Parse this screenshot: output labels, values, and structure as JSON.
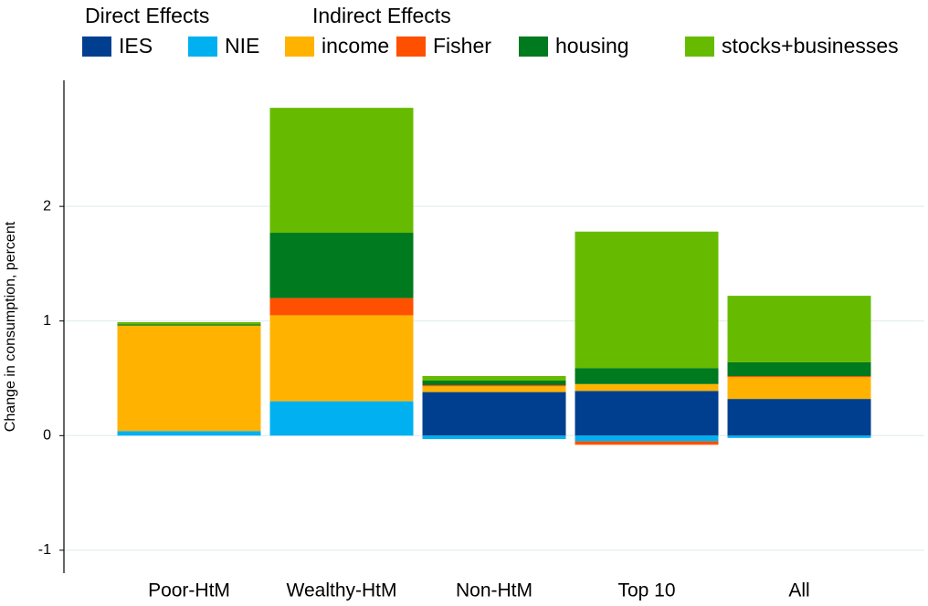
{
  "chart_data": {
    "type": "stacked_bar",
    "y_label": "Change in consumption, percent",
    "legend_groups": [
      {
        "title": "Direct Effects"
      },
      {
        "title": "Indirect Effects"
      }
    ],
    "categories": [
      "Poor-HtM",
      "Wealthy-HtM",
      "Non-HtM",
      "Top 10",
      "All"
    ],
    "series": [
      {
        "name": "IES",
        "color": "#003f8f",
        "values": [
          0,
          0,
          0.38,
          0.39,
          0.32
        ]
      },
      {
        "name": "NIE",
        "color": "#00b0f0",
        "values": [
          0.04,
          0.3,
          -0.03,
          -0.05,
          -0.02
        ]
      },
      {
        "name": "income",
        "color": "#ffb300",
        "values": [
          0.92,
          0.75,
          0.05,
          0.06,
          0.19
        ]
      },
      {
        "name": "Fisher",
        "color": "#ff5000",
        "values": [
          0,
          0.15,
          0.01,
          -0.03,
          0.01
        ]
      },
      {
        "name": "housing",
        "color": "#007a1e",
        "values": [
          0.01,
          0.57,
          0.04,
          0.14,
          0.12
        ]
      },
      {
        "name": "stocks+businesses",
        "color": "#66bb00",
        "values": [
          0.02,
          1.09,
          0.04,
          1.19,
          0.58
        ]
      }
    ],
    "ylim": [
      -1.2,
      3.1
    ],
    "yticks": [
      -1,
      0,
      1,
      2
    ],
    "grid": true
  }
}
